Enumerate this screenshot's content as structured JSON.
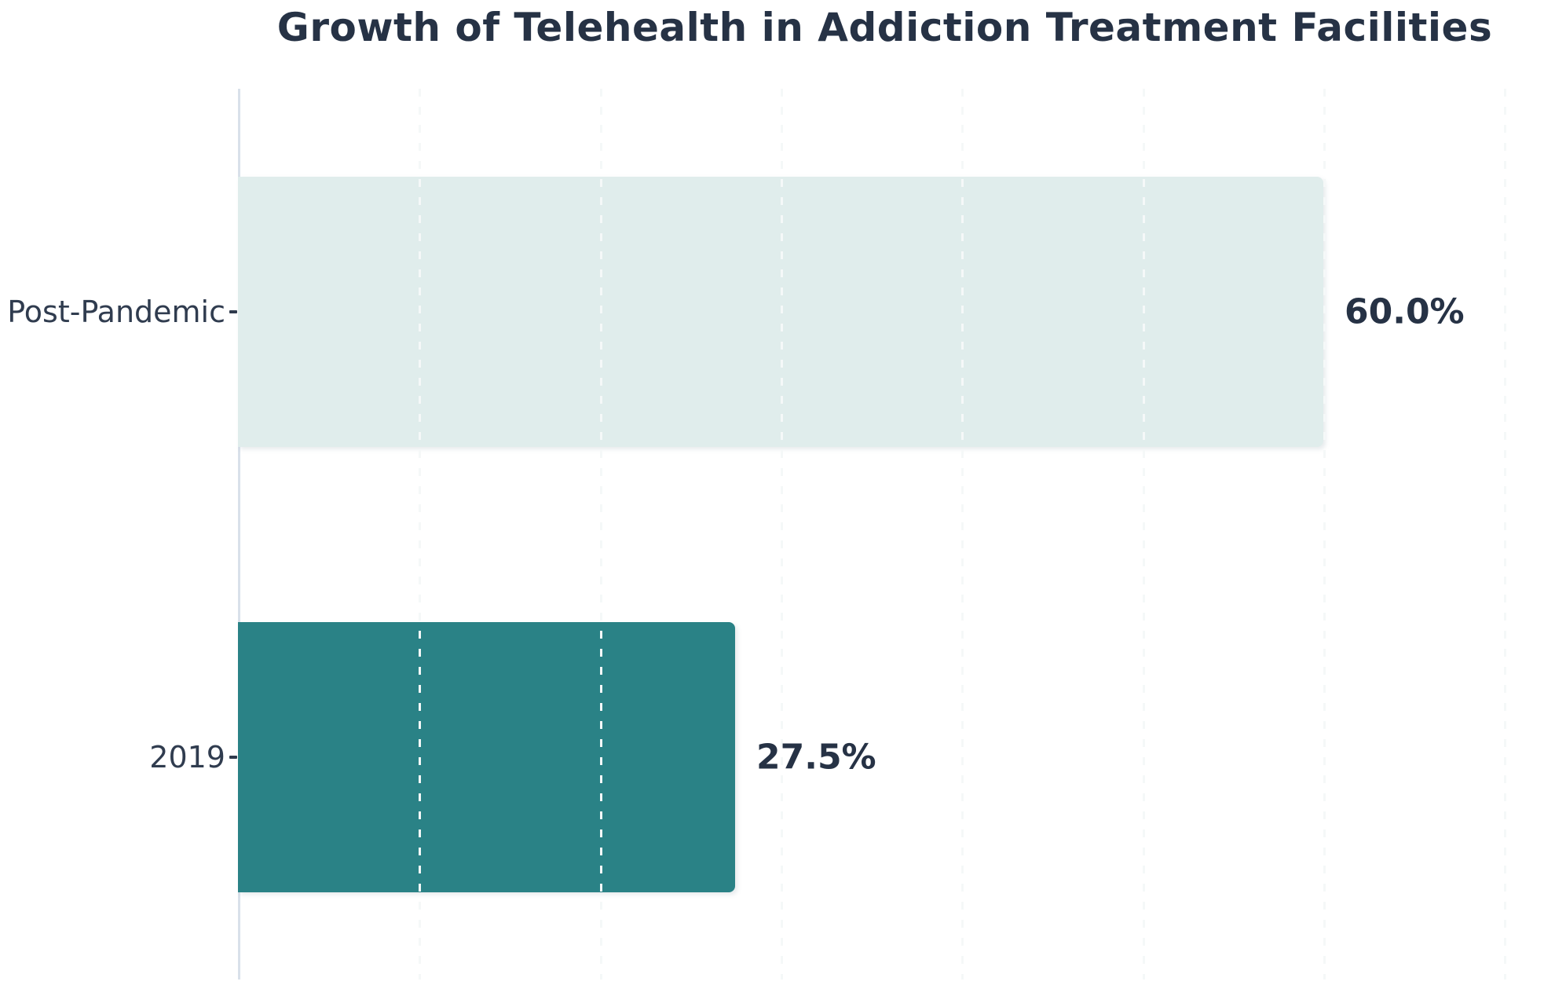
{
  "title": "Growth of Telehealth in Addiction Treatment Facilities",
  "colors": {
    "title_text": "#263245",
    "category_text": "#303c4f",
    "value_text": "#263245",
    "bar_post_pandemic": "#e0edec",
    "bar_2019": "#2a8286",
    "axis_line": "#d9e1ea",
    "gridline": "#f5f8f8",
    "background": "#ffffff"
  },
  "chart_data": {
    "type": "bar",
    "orientation": "horizontal",
    "title": "Growth of Telehealth in Addiction Treatment Facilities",
    "categories": [
      "Post-Pandemic",
      "2019"
    ],
    "values": [
      60.0,
      27.5
    ],
    "value_labels": [
      "60.0%",
      "27.5%"
    ],
    "bar_colors": [
      "#e0edec",
      "#2a8286"
    ],
    "xlabel": "",
    "ylabel": "",
    "xlim": [
      0,
      71.5
    ],
    "gridline_interval_pct": 10,
    "grid": "vertical dashed gridlines every 10%, drawn above bars",
    "legend": "none",
    "value_label_position": "outside right of bar end",
    "units": "percent of facilities"
  }
}
